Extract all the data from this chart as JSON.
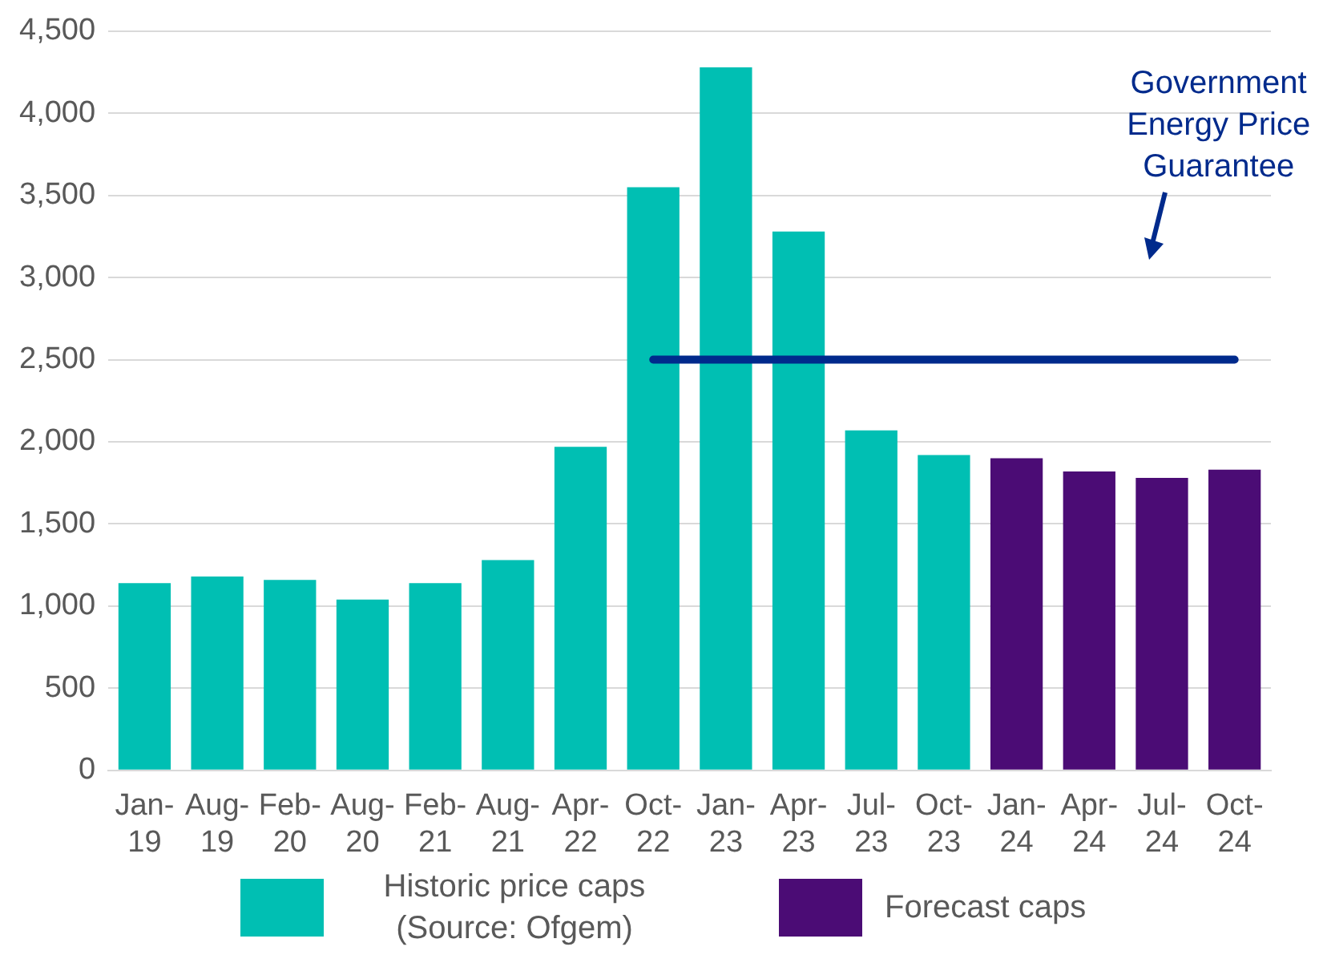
{
  "chart_data": {
    "type": "bar",
    "stacked": true,
    "categories": [
      "Jan-19",
      "Aug-19",
      "Feb-20",
      "Aug-20",
      "Feb-21",
      "Aug-21",
      "Apr-22",
      "Oct-22",
      "Jan-23",
      "Apr-23",
      "Jul-23",
      "Oct-23",
      "Jan-24",
      "Apr-24",
      "Jul-24",
      "Oct-24"
    ],
    "series": [
      {
        "name": "Historic price caps (Source: Ofgem)",
        "color": "#00bfb3",
        "values": [
          1140,
          1180,
          1160,
          1040,
          1140,
          1280,
          1970,
          3550,
          4280,
          3280,
          2070,
          1920,
          null,
          null,
          null,
          null
        ]
      },
      {
        "name": "Forecast caps",
        "color": "#4b0c75",
        "values": [
          null,
          null,
          null,
          null,
          null,
          null,
          null,
          null,
          null,
          null,
          null,
          null,
          1900,
          1820,
          1780,
          1830
        ]
      },
      {
        "name": "Government Energy Price Guarantee",
        "type": "line",
        "color": "#002a8c",
        "values": [
          null,
          null,
          null,
          null,
          null,
          null,
          null,
          2500,
          2500,
          2500,
          2500,
          2500,
          2500,
          2500,
          2500,
          2500
        ]
      }
    ],
    "ylim": [
      0,
      4500
    ],
    "yticks": [
      0,
      500,
      {
        "value": 1000,
        "label": "1,000"
      },
      {
        "value": 1500,
        "label": "1,500"
      },
      {
        "value": 2000,
        "label": "2,000"
      },
      {
        "value": 2500,
        "label": "2,500"
      },
      {
        "value": 3000,
        "label": "3,000"
      },
      {
        "value": 3500,
        "label": "3,500"
      },
      {
        "value": 4000,
        "label": "4,000"
      },
      {
        "value": 4500,
        "label": "4,500"
      }
    ],
    "grid": "y",
    "legend": "bottom"
  }
}
